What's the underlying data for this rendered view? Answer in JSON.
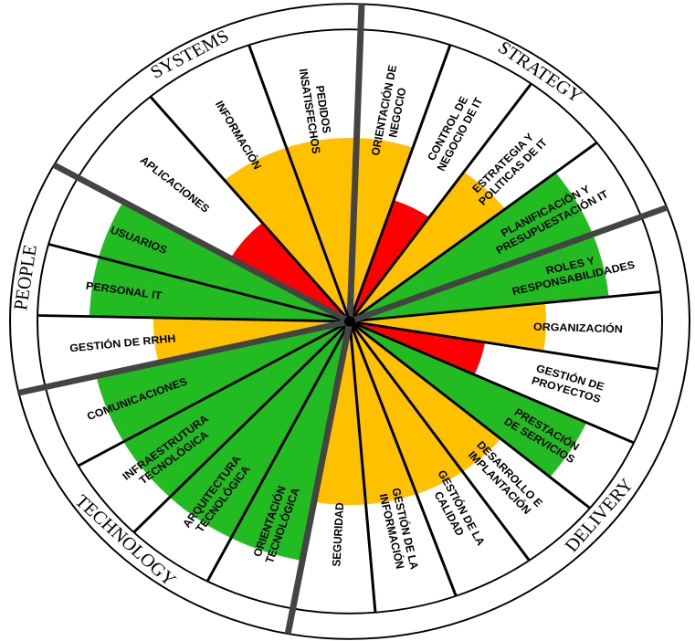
{
  "groups": [
    {
      "name": "STRATEGY",
      "segments": [
        {
          "label": [
            "ORIENTACIÓN DE",
            "NEGOCIO"
          ],
          "color": "#ffc000"
        },
        {
          "label": [
            "CONTROL DE",
            "NEGOCIO DE IT"
          ],
          "color": "#ff0000"
        },
        {
          "label": [
            "ESTRATEGIA Y",
            "POLITICAS DE IT"
          ],
          "color": "#ffc000"
        },
        {
          "label": [
            "PLANIFICACIÓN Y",
            "PRESUPUESTACIÓN IT"
          ],
          "color": "#22bb22"
        }
      ]
    },
    {
      "name": "DELIVERY",
      "segments": [
        {
          "label": [
            "ROLES Y",
            "RESPONSABILIDADES"
          ],
          "color": "#22bb22"
        },
        {
          "label": [
            "ORGANIZACIÓN"
          ],
          "color": "#ffc000"
        },
        {
          "label": [
            "GESTIÓN DE",
            "PROYECTOS"
          ],
          "color": "#ff0000"
        },
        {
          "label": [
            "PRESTACIÓN",
            "DE SERVICIOS"
          ],
          "color": "#22bb22"
        },
        {
          "label": [
            "DESARROLLO E",
            "IMPLANTACIÓN"
          ],
          "color": "#ffc000"
        },
        {
          "label": [
            "GESTIÓN DE LA",
            "CALIDAD"
          ],
          "color": "#ffc000"
        },
        {
          "label": [
            "GESTIÓN DE LA",
            "INFORMACIÓN"
          ],
          "color": "#ffc000"
        },
        {
          "label": [
            "SEGURIDAD"
          ],
          "color": "#ffc000"
        }
      ]
    },
    {
      "name": "TECHNOLOGY",
      "segments": [
        {
          "label": [
            "ORIENTACIÓN",
            "TECNOLÓGICA"
          ],
          "color": "#22bb22"
        },
        {
          "label": [
            "ARQUITECTURA",
            "TECNOLÓGICA"
          ],
          "color": "#22bb22"
        },
        {
          "label": [
            "INFRAESTRUTURA",
            "TECNOLÓGICA"
          ],
          "color": "#22bb22"
        },
        {
          "label": [
            "COMUNICACIONES"
          ],
          "color": "#22bb22"
        }
      ]
    },
    {
      "name": "PEOPLE",
      "segments": [
        {
          "label": [
            "GESTIÓN DE RRHH"
          ],
          "color": "#ffc000"
        },
        {
          "label": [
            "PERSONAL IT"
          ],
          "color": "#22bb22"
        },
        {
          "label": [
            "USUARIOS"
          ],
          "color": "#22bb22"
        }
      ]
    },
    {
      "name": "SYSTEMS",
      "segments": [
        {
          "label": [
            "APLICACIONES"
          ],
          "color": "#ff0000"
        },
        {
          "label": [
            "INFORMACIÓN"
          ],
          "color": "#ffc000"
        },
        {
          "label": [
            "PEDIDOS",
            "INSATISFECHOS"
          ],
          "color": "#ffc000"
        }
      ]
    }
  ]
}
